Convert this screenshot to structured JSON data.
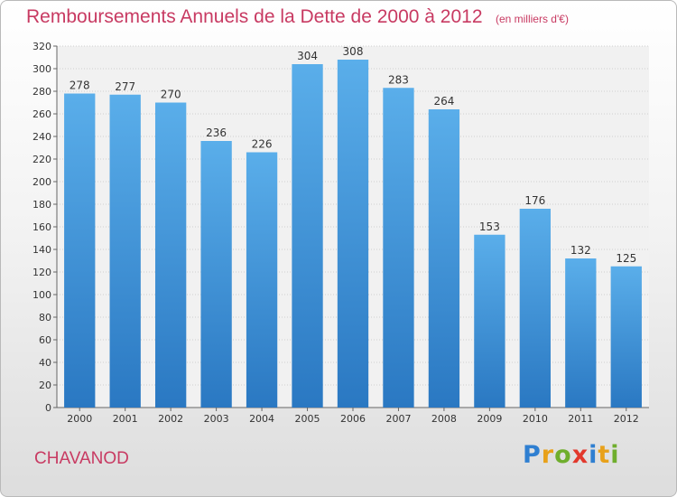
{
  "header": {
    "title": "Remboursements Annuels de la Dette de 2000 à 2012",
    "unit": "(en milliers d'€)"
  },
  "footer": {
    "city": "CHAVANOD",
    "logo": [
      "P",
      "r",
      "o",
      "x",
      "i",
      "t",
      "i"
    ],
    "logo_colors": [
      "#2f7fd1",
      "#e8a11a",
      "#6fae2d",
      "#e2382c",
      "#2f7fd1",
      "#e8a11a",
      "#6fae2d"
    ]
  },
  "chart_data": {
    "type": "bar",
    "categories": [
      "2000",
      "2001",
      "2002",
      "2003",
      "2004",
      "2005",
      "2006",
      "2007",
      "2008",
      "2009",
      "2010",
      "2011",
      "2012"
    ],
    "values": [
      278,
      277,
      270,
      236,
      226,
      304,
      308,
      283,
      264,
      153,
      176,
      132,
      125
    ],
    "ylim": [
      0,
      320
    ],
    "yticks": [
      0,
      20,
      40,
      60,
      80,
      100,
      120,
      140,
      160,
      180,
      200,
      220,
      240,
      260,
      280,
      300,
      320
    ],
    "grid": true,
    "bar_color": "#3f93db",
    "bar_color_light": "#5aaeea",
    "bar_color_dark": "#2a78c2"
  }
}
